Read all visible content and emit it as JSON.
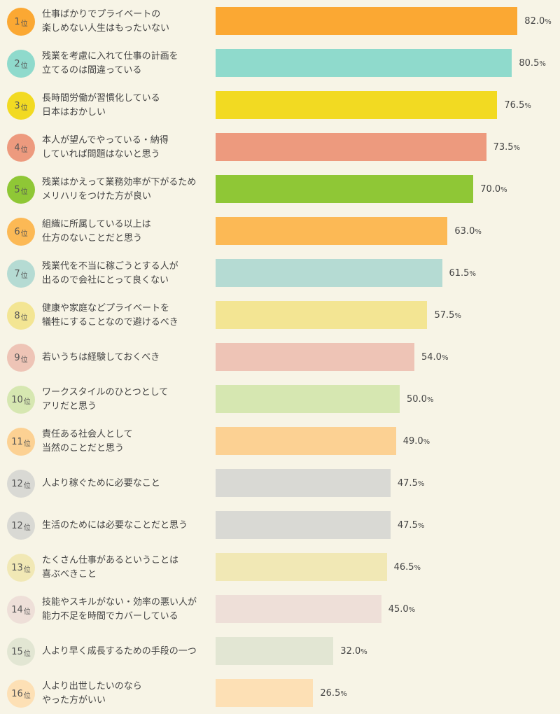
{
  "chart_data": {
    "type": "bar",
    "orientation": "horizontal",
    "rank_suffix": "位",
    "value_unit": "%",
    "items": [
      {
        "rank": "1",
        "lines": [
          "仕事ばかりでプライベートの",
          "楽しめない人生はもったいない"
        ],
        "value": 82.0,
        "value_label": "82.0",
        "color": "#fba833",
        "badge_color": "#fba833"
      },
      {
        "rank": "2",
        "lines": [
          "残業を考慮に入れて仕事の計画を",
          "立てるのは間違っている"
        ],
        "value": 80.5,
        "value_label": "80.5",
        "color": "#8fdacc",
        "badge_color": "#8fdacc"
      },
      {
        "rank": "3",
        "lines": [
          "長時間労働が習慣化している",
          "日本はおかしい"
        ],
        "value": 76.5,
        "value_label": "76.5",
        "color": "#f2da22",
        "badge_color": "#f2da22"
      },
      {
        "rank": "4",
        "lines": [
          "本人が望んでやっている・納得",
          "していれば問題はないと思う"
        ],
        "value": 73.5,
        "value_label": "73.5",
        "color": "#ed9a7e",
        "badge_color": "#ed9a7e"
      },
      {
        "rank": "5",
        "lines": [
          "残業はかえって業務効率が下がるため",
          "メリハリをつけた方が良い"
        ],
        "value": 70.0,
        "value_label": "70.0",
        "color": "#8fc736",
        "badge_color": "#8fc736"
      },
      {
        "rank": "6",
        "lines": [
          "組織に所属している以上は",
          "仕方のないことだと思う"
        ],
        "value": 63.0,
        "value_label": "63.0",
        "color": "#fcb955",
        "badge_color": "#fcb955"
      },
      {
        "rank": "7",
        "lines": [
          "残業代を不当に稼ごうとする人が",
          "出るので会社にとって良くない"
        ],
        "value": 61.5,
        "value_label": "61.5",
        "color": "#b5dbd3",
        "badge_color": "#b5dbd3"
      },
      {
        "rank": "8",
        "lines": [
          "健康や家庭などプライベートを",
          "犠牲にすることなので避けるべき"
        ],
        "value": 57.5,
        "value_label": "57.5",
        "color": "#f3e593",
        "badge_color": "#f3e593"
      },
      {
        "rank": "9",
        "lines": [
          "若いうちは経験しておくべき"
        ],
        "value": 54.0,
        "value_label": "54.0",
        "color": "#eec4b6",
        "badge_color": "#eec4b6"
      },
      {
        "rank": "10",
        "lines": [
          "ワークスタイルのひとつとして",
          "アリだと思う"
        ],
        "value": 50.0,
        "value_label": "50.0",
        "color": "#d6e7b1",
        "badge_color": "#d6e7b1"
      },
      {
        "rank": "11",
        "lines": [
          "責任ある社会人として",
          "当然のことだと思う"
        ],
        "value": 49.0,
        "value_label": "49.0",
        "color": "#fcd193",
        "badge_color": "#fcd193"
      },
      {
        "rank": "12",
        "lines": [
          "人より稼ぐために必要なこと"
        ],
        "value": 47.5,
        "value_label": "47.5",
        "color": "#d9d9d4",
        "badge_color": "#d9d9d4"
      },
      {
        "rank": "12",
        "lines": [
          "生活のためには必要なことだと思う"
        ],
        "value": 47.5,
        "value_label": "47.5",
        "color": "#d9d9d4",
        "badge_color": "#d9d9d4"
      },
      {
        "rank": "13",
        "lines": [
          "たくさん仕事があるということは",
          "喜ぶべきこと"
        ],
        "value": 46.5,
        "value_label": "46.5",
        "color": "#f1e8b5",
        "badge_color": "#f1e8b5"
      },
      {
        "rank": "14",
        "lines": [
          "技能やスキルがない・効率の悪い人が",
          "能力不足を時間でカバーしている"
        ],
        "value": 45.0,
        "value_label": "45.0",
        "color": "#eedfd8",
        "badge_color": "#eedfd8"
      },
      {
        "rank": "15",
        "lines": [
          "人より早く成長するための手段の一つ"
        ],
        "value": 32.0,
        "value_label": "32.0",
        "color": "#e2e6d3",
        "badge_color": "#e2e6d3"
      },
      {
        "rank": "16",
        "lines": [
          "人より出世したいのなら",
          "やった方がいい"
        ],
        "value": 26.5,
        "value_label": "26.5",
        "color": "#fde0b5",
        "badge_color": "#fde0b5"
      }
    ],
    "xlim": [
      0,
      100
    ],
    "title": "",
    "xlabel": "",
    "ylabel": ""
  }
}
